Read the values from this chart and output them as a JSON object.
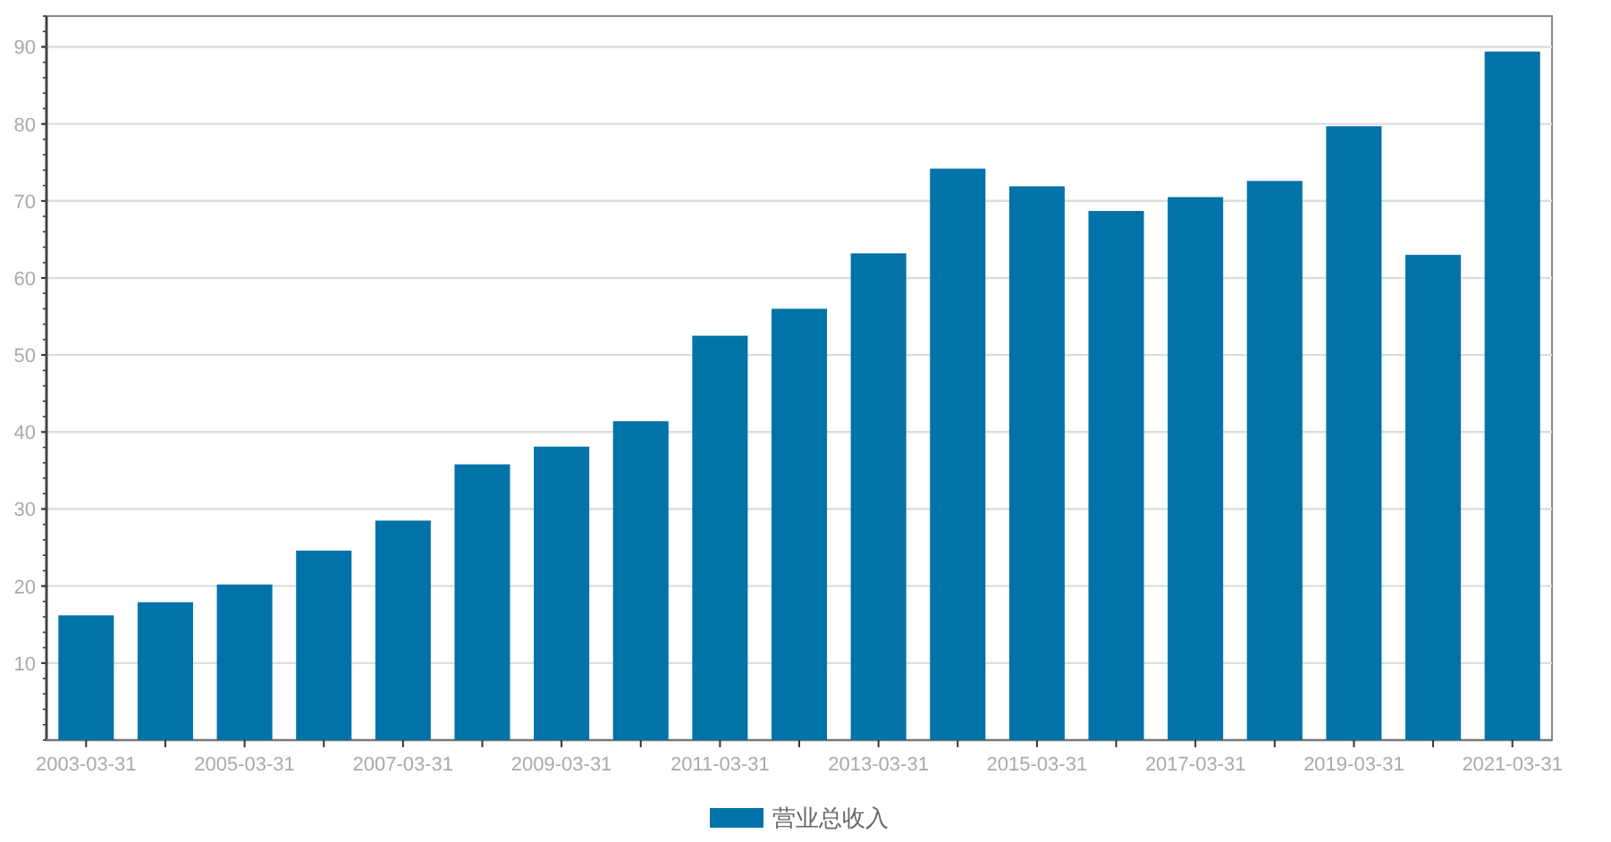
{
  "chart_data": {
    "type": "bar",
    "categories": [
      "2003-03-31",
      null,
      "2005-03-31",
      null,
      "2007-03-31",
      null,
      "2009-03-31",
      null,
      "2011-03-31",
      null,
      "2013-03-31",
      null,
      "2015-03-31",
      null,
      "2017-03-31",
      null,
      "2019-03-31",
      null,
      "2021-03-31"
    ],
    "series": [
      {
        "name": "营业总收入",
        "color": "#0273a8",
        "values": [
          16.2,
          17.9,
          20.2,
          24.6,
          28.5,
          35.8,
          38.1,
          41.4,
          52.5,
          56.0,
          63.2,
          74.2,
          71.9,
          68.7,
          70.5,
          72.6,
          79.7,
          63.0,
          89.4
        ]
      }
    ],
    "ylim": [
      0,
      94
    ],
    "yticks": [
      10,
      20,
      30,
      40,
      50,
      60,
      70,
      80,
      90
    ],
    "grid": "y",
    "legend": "bottom"
  }
}
